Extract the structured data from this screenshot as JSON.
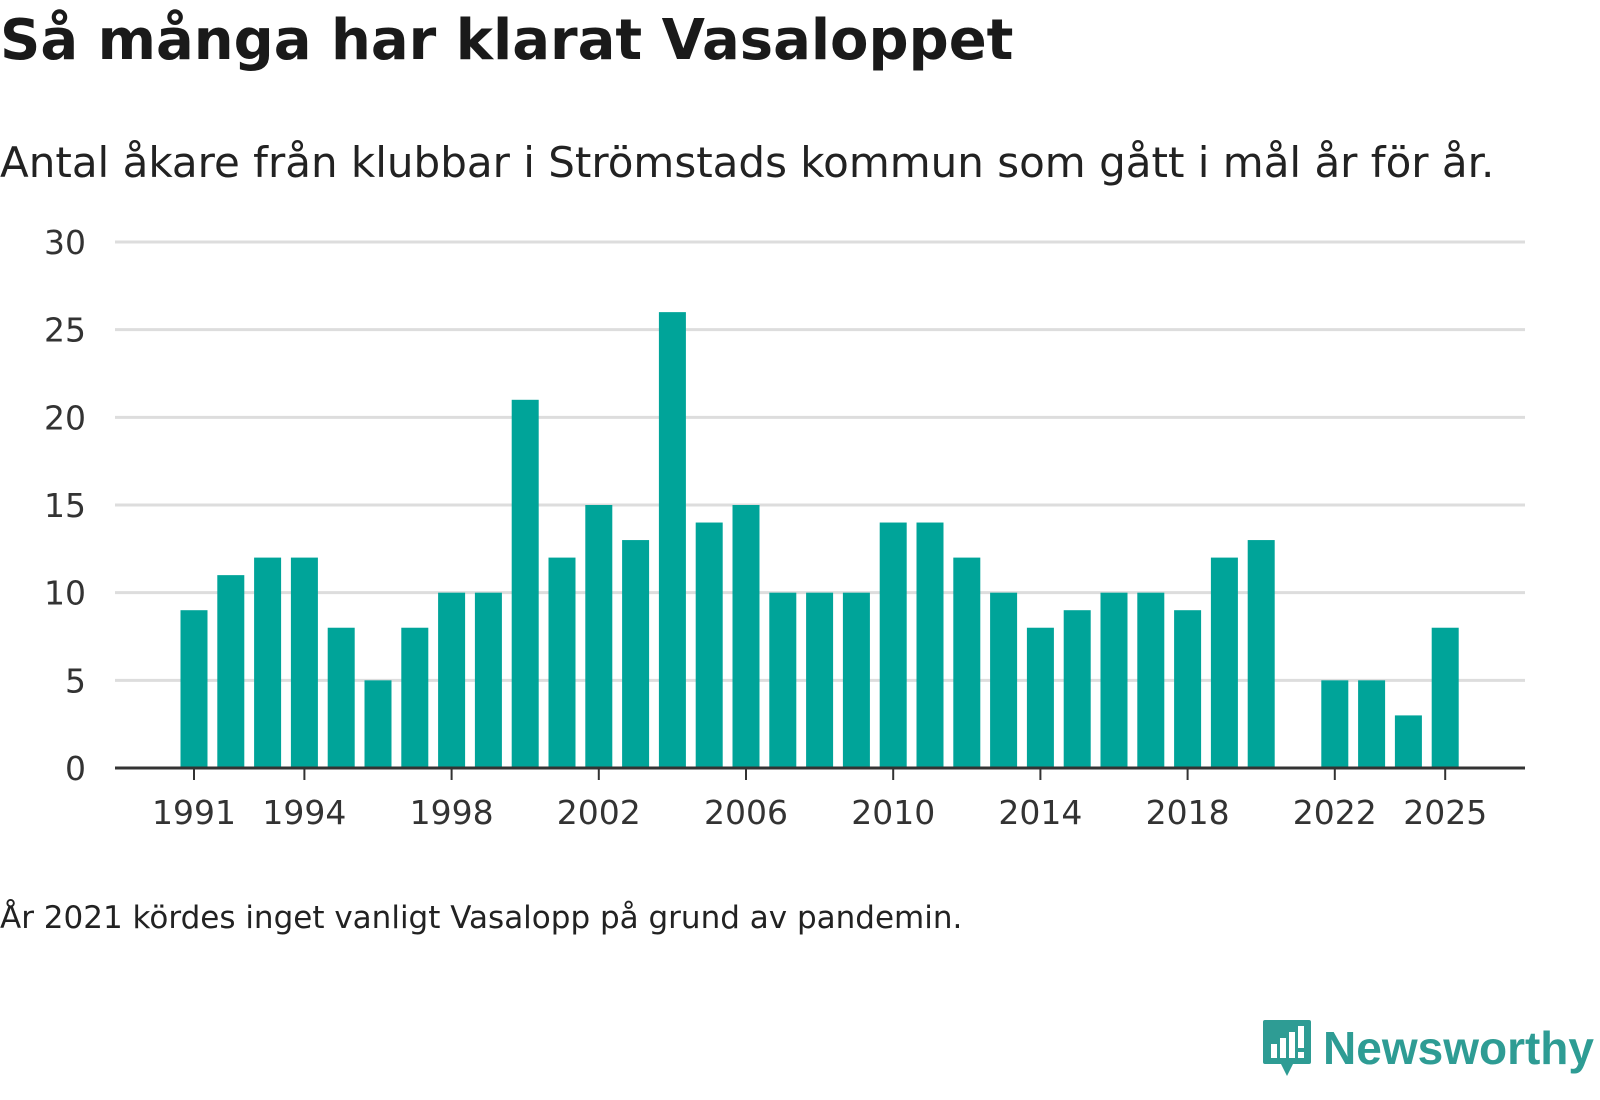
{
  "header": {
    "title": "Så många har klarat Vasaloppet",
    "subtitle": "Antal åkare från klubbar i Strömstads kommun som gått i mål år för år."
  },
  "note": "År 2021 kördes inget vanligt Vasalopp på grund av pandemin.",
  "brand": {
    "name": "Newsworthy",
    "color": "#2e9c94",
    "icon": "newsworthy-logo-icon"
  },
  "colors": {
    "bar": "#00a499",
    "grid": "#dddddd",
    "axis": "#333333"
  },
  "chart_data": {
    "type": "bar",
    "title": "Så många har klarat Vasaloppet",
    "xlabel": "",
    "ylabel": "",
    "ylim": [
      0,
      30
    ],
    "yticks": [
      0,
      5,
      10,
      15,
      20,
      25,
      30
    ],
    "xticks": [
      1991,
      1994,
      1998,
      2002,
      2006,
      2010,
      2014,
      2018,
      2022,
      2025
    ],
    "categories": [
      1991,
      1992,
      1993,
      1994,
      1995,
      1996,
      1997,
      1998,
      1999,
      2000,
      2001,
      2002,
      2003,
      2004,
      2005,
      2006,
      2007,
      2008,
      2009,
      2010,
      2011,
      2012,
      2013,
      2014,
      2015,
      2016,
      2017,
      2018,
      2019,
      2020,
      2021,
      2022,
      2023,
      2024,
      2025
    ],
    "values": [
      9,
      11,
      12,
      12,
      8,
      5,
      8,
      10,
      10,
      21,
      12,
      15,
      13,
      26,
      14,
      15,
      10,
      10,
      10,
      14,
      14,
      12,
      10,
      8,
      9,
      10,
      10,
      9,
      12,
      13,
      null,
      5,
      5,
      3,
      8
    ],
    "grid": true,
    "legend": "none"
  }
}
